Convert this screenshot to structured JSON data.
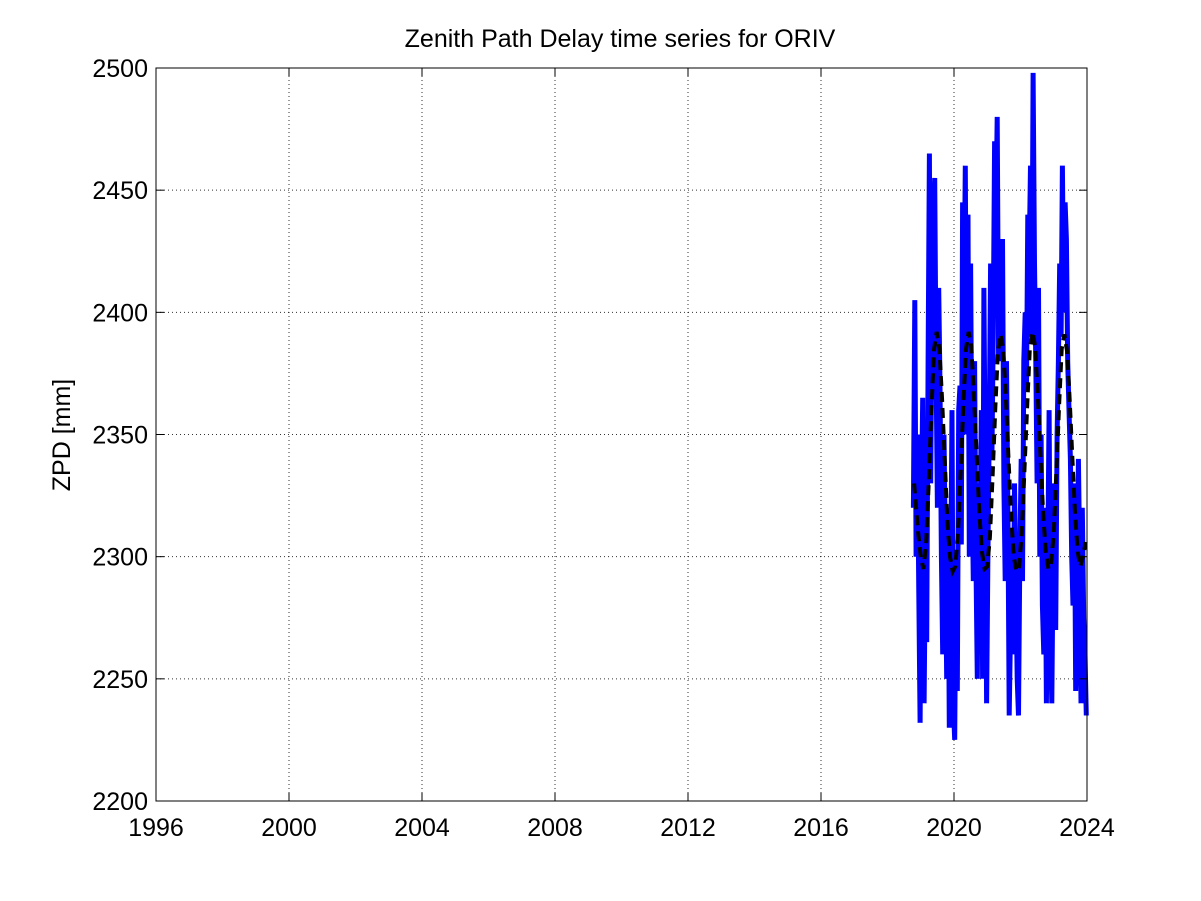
{
  "chart_data": {
    "type": "line",
    "title": "Zenith Path Delay time series for ORIV",
    "xlabel": "",
    "ylabel": "ZPD [mm]",
    "xlim": [
      1996,
      2024
    ],
    "ylim": [
      2200,
      2500
    ],
    "x_ticks": [
      "1996",
      "2000",
      "2004",
      "2008",
      "2012",
      "2016",
      "2020",
      "2024"
    ],
    "y_ticks": [
      "2200",
      "2250",
      "2300",
      "2350",
      "2400",
      "2450",
      "2500"
    ],
    "grid": true,
    "colors": {
      "observed": "#0000ff",
      "model": "#000000"
    },
    "series": [
      {
        "style": "solid",
        "color": "#0000ff",
        "x": [
          2018.78,
          2018.82,
          2018.86,
          2018.9,
          2018.94,
          2018.98,
          2019.02,
          2019.06,
          2019.1,
          2019.14,
          2019.18,
          2019.22,
          2019.26,
          2019.3,
          2019.34,
          2019.38,
          2019.42,
          2019.46,
          2019.5,
          2019.54,
          2019.58,
          2019.62,
          2019.66,
          2019.7,
          2019.74,
          2019.78,
          2019.82,
          2019.86,
          2019.9,
          2019.94,
          2019.98,
          2020.02,
          2020.06,
          2020.1,
          2020.14,
          2020.18,
          2020.22,
          2020.26,
          2020.3,
          2020.34,
          2020.38,
          2020.42,
          2020.46,
          2020.5,
          2020.54,
          2020.58,
          2020.62,
          2020.66,
          2020.7,
          2020.74,
          2020.78,
          2020.82,
          2020.86,
          2020.9,
          2020.94,
          2020.98,
          2021.02,
          2021.06,
          2021.1,
          2021.14,
          2021.18,
          2021.22,
          2021.26,
          2021.3,
          2021.34,
          2021.38,
          2021.42,
          2021.46,
          2021.5,
          2021.54,
          2021.58,
          2021.62,
          2021.66,
          2021.7,
          2021.74,
          2021.78,
          2021.82,
          2021.86,
          2021.9,
          2021.94,
          2021.98,
          2022.02,
          2022.06,
          2022.1,
          2022.14,
          2022.18,
          2022.22,
          2022.26,
          2022.3,
          2022.34,
          2022.38,
          2022.42,
          2022.46,
          2022.5,
          2022.54,
          2022.58,
          2022.62,
          2022.66,
          2022.7,
          2022.74,
          2022.78,
          2022.82,
          2022.86,
          2022.9,
          2022.94,
          2022.98,
          2023.02,
          2023.06,
          2023.1,
          2023.14,
          2023.18,
          2023.22,
          2023.26,
          2023.3,
          2023.34,
          2023.38,
          2023.42,
          2023.46,
          2023.5,
          2023.54,
          2023.58,
          2023.62,
          2023.66,
          2023.7,
          2023.74,
          2023.78,
          2023.82,
          2023.86,
          2023.9,
          2023.94,
          2023.98
        ],
        "values": [
          2320,
          2405,
          2300,
          2350,
          2285,
          2232,
          2320,
          2365,
          2240,
          2300,
          2265,
          2380,
          2465,
          2330,
          2410,
          2440,
          2455,
          2380,
          2320,
          2410,
          2370,
          2300,
          2260,
          2350,
          2300,
          2250,
          2320,
          2230,
          2290,
          2360,
          2240,
          2225,
          2300,
          2245,
          2360,
          2370,
          2305,
          2445,
          2400,
          2460,
          2350,
          2440,
          2300,
          2420,
          2330,
          2290,
          2380,
          2300,
          2250,
          2330,
          2300,
          2360,
          2250,
          2410,
          2330,
          2240,
          2300,
          2350,
          2420,
          2340,
          2390,
          2470,
          2440,
          2480,
          2380,
          2400,
          2380,
          2430,
          2330,
          2290,
          2380,
          2320,
          2235,
          2270,
          2310,
          2260,
          2330,
          2290,
          2250,
          2235,
          2300,
          2340,
          2290,
          2380,
          2400,
          2370,
          2440,
          2420,
          2460,
          2390,
          2498,
          2420,
          2380,
          2330,
          2410,
          2300,
          2350,
          2280,
          2260,
          2320,
          2240,
          2300,
          2360,
          2270,
          2240,
          2300,
          2330,
          2270,
          2350,
          2380,
          2420,
          2390,
          2460,
          2400,
          2445,
          2430,
          2380,
          2360,
          2340,
          2300,
          2280,
          2330,
          2245,
          2270,
          2340,
          2300,
          2240,
          2320,
          2275,
          2260,
          2235
        ]
      },
      {
        "style": "dashed",
        "color": "#000000",
        "x": [
          2018.8,
          2018.92,
          2019.0,
          2019.08,
          2019.16,
          2019.24,
          2019.32,
          2019.4,
          2019.48,
          2019.56,
          2019.64,
          2019.72,
          2019.8,
          2019.88,
          2019.96,
          2020.04,
          2020.12,
          2020.2,
          2020.28,
          2020.36,
          2020.44,
          2020.52,
          2020.6,
          2020.68,
          2020.76,
          2020.84,
          2020.92,
          2021.0,
          2021.08,
          2021.16,
          2021.24,
          2021.32,
          2021.4,
          2021.48,
          2021.56,
          2021.64,
          2021.72,
          2021.8,
          2021.88,
          2021.96,
          2022.04,
          2022.12,
          2022.2,
          2022.28,
          2022.36,
          2022.44,
          2022.52,
          2022.6,
          2022.68,
          2022.76,
          2022.84,
          2022.92,
          2023.0,
          2023.08,
          2023.16,
          2023.24,
          2023.32,
          2023.4,
          2023.48,
          2023.56,
          2023.64,
          2023.72,
          2023.8,
          2023.88,
          2023.96
        ],
        "values": [
          2330,
          2310,
          2300,
          2295,
          2305,
          2330,
          2360,
          2385,
          2392,
          2385,
          2365,
          2340,
          2315,
          2300,
          2294,
          2296,
          2310,
          2335,
          2362,
          2385,
          2392,
          2386,
          2366,
          2342,
          2318,
          2302,
          2295,
          2296,
          2308,
          2333,
          2360,
          2384,
          2391,
          2385,
          2365,
          2340,
          2316,
          2300,
          2294,
          2296,
          2310,
          2336,
          2362,
          2385,
          2392,
          2386,
          2366,
          2342,
          2318,
          2302,
          2295,
          2297,
          2310,
          2335,
          2362,
          2385,
          2391,
          2384,
          2364,
          2340,
          2318,
          2302,
          2296,
          2300,
          2306
        ]
      }
    ]
  }
}
